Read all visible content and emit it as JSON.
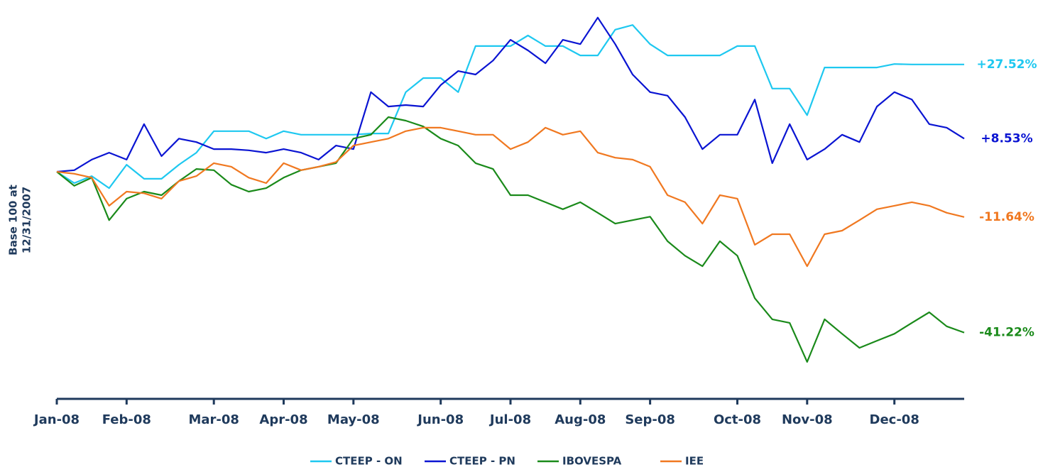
{
  "chart_data": {
    "type": "line",
    "y_label": [
      "Base 100 at",
      "12/31/2007"
    ],
    "categories": [
      "Jan-08",
      null,
      null,
      null,
      "Feb-08",
      null,
      null,
      null,
      null,
      "Mar-08",
      null,
      null,
      null,
      "Apr-08",
      null,
      null,
      null,
      "May-08",
      null,
      null,
      null,
      null,
      "Jun-08",
      null,
      null,
      null,
      "Jul-08",
      null,
      null,
      null,
      "Aug-08",
      null,
      null,
      null,
      "Sep-08",
      null,
      null,
      null,
      null,
      "Oct-08",
      null,
      null,
      null,
      "Nov-08",
      null,
      null,
      null,
      null,
      "Dec-08",
      null,
      null,
      null,
      null
    ],
    "ylim": [
      42,
      144
    ],
    "series": [
      {
        "name": "CTEEP - ON",
        "color": "#1ec8f0",
        "end_label": "+27.52%",
        "values": [
          100.0,
          97.1,
          98.9,
          95.8,
          101.8,
          98.2,
          98.2,
          101.8,
          104.9,
          110.4,
          110.4,
          110.4,
          108.5,
          110.4,
          109.5,
          109.5,
          109.5,
          109.5,
          109.8,
          109.8,
          120.4,
          124.0,
          124.0,
          120.4,
          132.2,
          132.2,
          132.2,
          134.9,
          132.2,
          132.2,
          129.8,
          129.8,
          136.4,
          137.6,
          132.7,
          129.8,
          129.8,
          129.8,
          129.8,
          132.2,
          132.2,
          121.3,
          121.3,
          114.5,
          126.7,
          126.7,
          126.7,
          126.7,
          127.6,
          127.5,
          127.5,
          127.5,
          127.5
        ]
      },
      {
        "name": "CTEEP - PN",
        "color": "#0a14d2",
        "end_label": "+8.53%",
        "values": [
          100.0,
          100.4,
          103.1,
          104.9,
          103.1,
          112.2,
          104.0,
          108.5,
          107.6,
          105.8,
          105.8,
          105.5,
          104.9,
          105.8,
          104.9,
          103.1,
          106.7,
          105.8,
          120.4,
          116.7,
          117.1,
          116.7,
          122.2,
          125.8,
          124.9,
          128.5,
          133.8,
          131.1,
          127.8,
          133.8,
          132.7,
          139.5,
          132.7,
          124.9,
          120.4,
          119.5,
          114.0,
          105.8,
          109.5,
          109.5,
          118.5,
          102.2,
          112.2,
          103.1,
          105.8,
          109.5,
          107.6,
          116.7,
          120.4,
          118.5,
          112.2,
          111.3,
          108.5
        ]
      },
      {
        "name": "IBOVESPA",
        "color": "#1a8a1a",
        "end_label": "-41.22%",
        "values": [
          100.0,
          96.4,
          98.5,
          87.6,
          93.1,
          94.9,
          94.0,
          97.6,
          100.7,
          100.4,
          96.7,
          94.9,
          95.8,
          98.5,
          100.4,
          101.3,
          102.2,
          108.5,
          109.5,
          114.0,
          113.1,
          111.6,
          108.5,
          106.7,
          102.2,
          100.7,
          94.0,
          94.0,
          92.2,
          90.4,
          92.2,
          89.5,
          86.7,
          87.6,
          88.5,
          82.2,
          78.5,
          75.8,
          82.2,
          78.5,
          67.6,
          62.2,
          61.3,
          51.3,
          62.2,
          58.5,
          54.9,
          56.7,
          58.5,
          61.3,
          64.0,
          60.4,
          58.8
        ]
      },
      {
        "name": "IEE",
        "color": "#f07820",
        "end_label": "-11.64%",
        "values": [
          100.0,
          99.5,
          98.5,
          91.3,
          94.9,
          94.5,
          93.1,
          97.6,
          98.9,
          102.2,
          101.3,
          98.5,
          97.1,
          102.2,
          100.4,
          101.3,
          102.5,
          106.7,
          107.6,
          108.5,
          110.4,
          111.3,
          111.3,
          110.4,
          109.5,
          109.5,
          105.8,
          107.6,
          111.3,
          109.5,
          110.4,
          104.9,
          103.6,
          103.1,
          101.3,
          94.0,
          92.2,
          86.7,
          94.0,
          93.1,
          81.3,
          84.0,
          84.0,
          75.8,
          84.0,
          84.9,
          87.6,
          90.4,
          91.3,
          92.2,
          91.3,
          89.5,
          88.4
        ]
      }
    ]
  }
}
